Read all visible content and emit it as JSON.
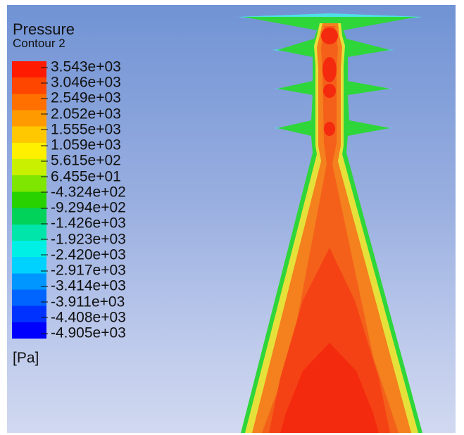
{
  "legend": {
    "title": "Pressure",
    "subtitle": "Contour 2",
    "unit": "[Pa]",
    "ticks": [
      "3.543e+03",
      "3.046e+03",
      "2.549e+03",
      "2.052e+03",
      "1.555e+03",
      "1.059e+03",
      "5.615e+02",
      "6.455e+01",
      "-4.324e+02",
      "-9.294e+02",
      "-1.426e+03",
      "-1.923e+03",
      "-2.420e+03",
      "-2.917e+03",
      "-3.414e+03",
      "-3.911e+03",
      "-4.408e+03",
      "-4.905e+03"
    ],
    "color_stops": [
      "#ff1a00",
      "#ff4600",
      "#ff7000",
      "#ff9a00",
      "#ffc800",
      "#fff000",
      "#c8f000",
      "#7ee600",
      "#28d200",
      "#00d25a",
      "#00e6aa",
      "#00f0e6",
      "#00d2ff",
      "#0096ff",
      "#0064ff",
      "#0032ff",
      "#0000ff"
    ]
  },
  "colors": {
    "background_top": "#7193d4",
    "background_bottom": "#d1d9f0",
    "field_high": "#f42a0e",
    "field_mid": "#f4801e",
    "field_edge": "#2fd63a"
  }
}
